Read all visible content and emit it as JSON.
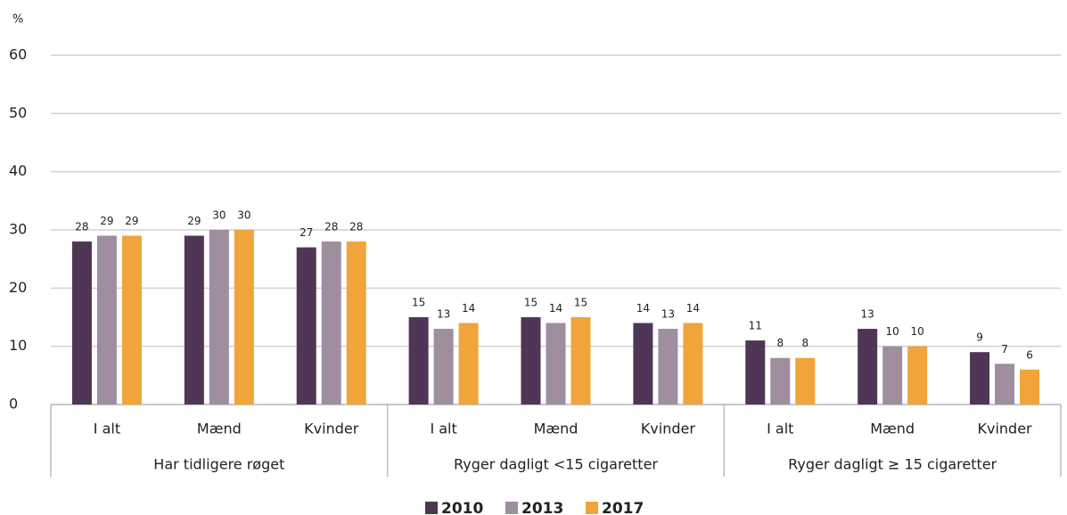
{
  "chart_data": {
    "type": "bar",
    "y_label": "%",
    "categories": [
      "I alt",
      "Mænd",
      "Kvinder",
      "I alt",
      "Mænd",
      "Kvinder",
      "I alt",
      "Mænd",
      "Kvinder"
    ],
    "groups": [
      "Har tidligere røget",
      "Ryger dagligt <15 cigaretter",
      "Ryger dagligt ≥ 15 cigaretter"
    ],
    "series": [
      {
        "name": "2010",
        "color": "#4f3656",
        "values": [
          28,
          29,
          27,
          15,
          15,
          14,
          11,
          13,
          9
        ]
      },
      {
        "name": "2013",
        "color": "#9e8ea0",
        "values": [
          29,
          30,
          28,
          13,
          14,
          13,
          8,
          10,
          7
        ]
      },
      {
        "name": "2017",
        "color": "#f0a43a",
        "values": [
          29,
          30,
          28,
          14,
          15,
          14,
          8,
          10,
          6
        ]
      }
    ],
    "ylim": [
      0,
      60
    ],
    "yticks": [
      0,
      10,
      20,
      30,
      40,
      50,
      60
    ],
    "grid": true,
    "legend": "bottom"
  }
}
